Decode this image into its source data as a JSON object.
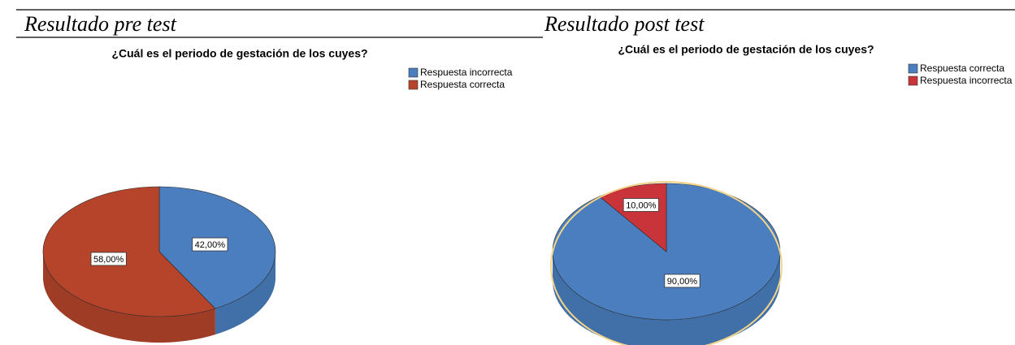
{
  "chart_data": [
    {
      "type": "pie",
      "caption": "Resultado pre test",
      "title": "¿Cuál es el periodo de gestación de los cuyes?",
      "categories": [
        "Respuesta incorrecta",
        "Respuesta correcta"
      ],
      "values": [
        42,
        58
      ],
      "value_labels": [
        "42,00%",
        "58,00%"
      ],
      "colors": [
        "#4a7ebf",
        "#b5442a"
      ]
    },
    {
      "type": "pie",
      "caption": "Resultado post test",
      "title": "¿Cuál es el periodo de gestación de los cuyes?",
      "categories": [
        "Respuesta correcta",
        "Respuesta incorrecta"
      ],
      "values": [
        90,
        10
      ],
      "value_labels": [
        "90,00%",
        "10,00%"
      ],
      "colors": [
        "#4a7ebf",
        "#c9343a"
      ]
    }
  ]
}
